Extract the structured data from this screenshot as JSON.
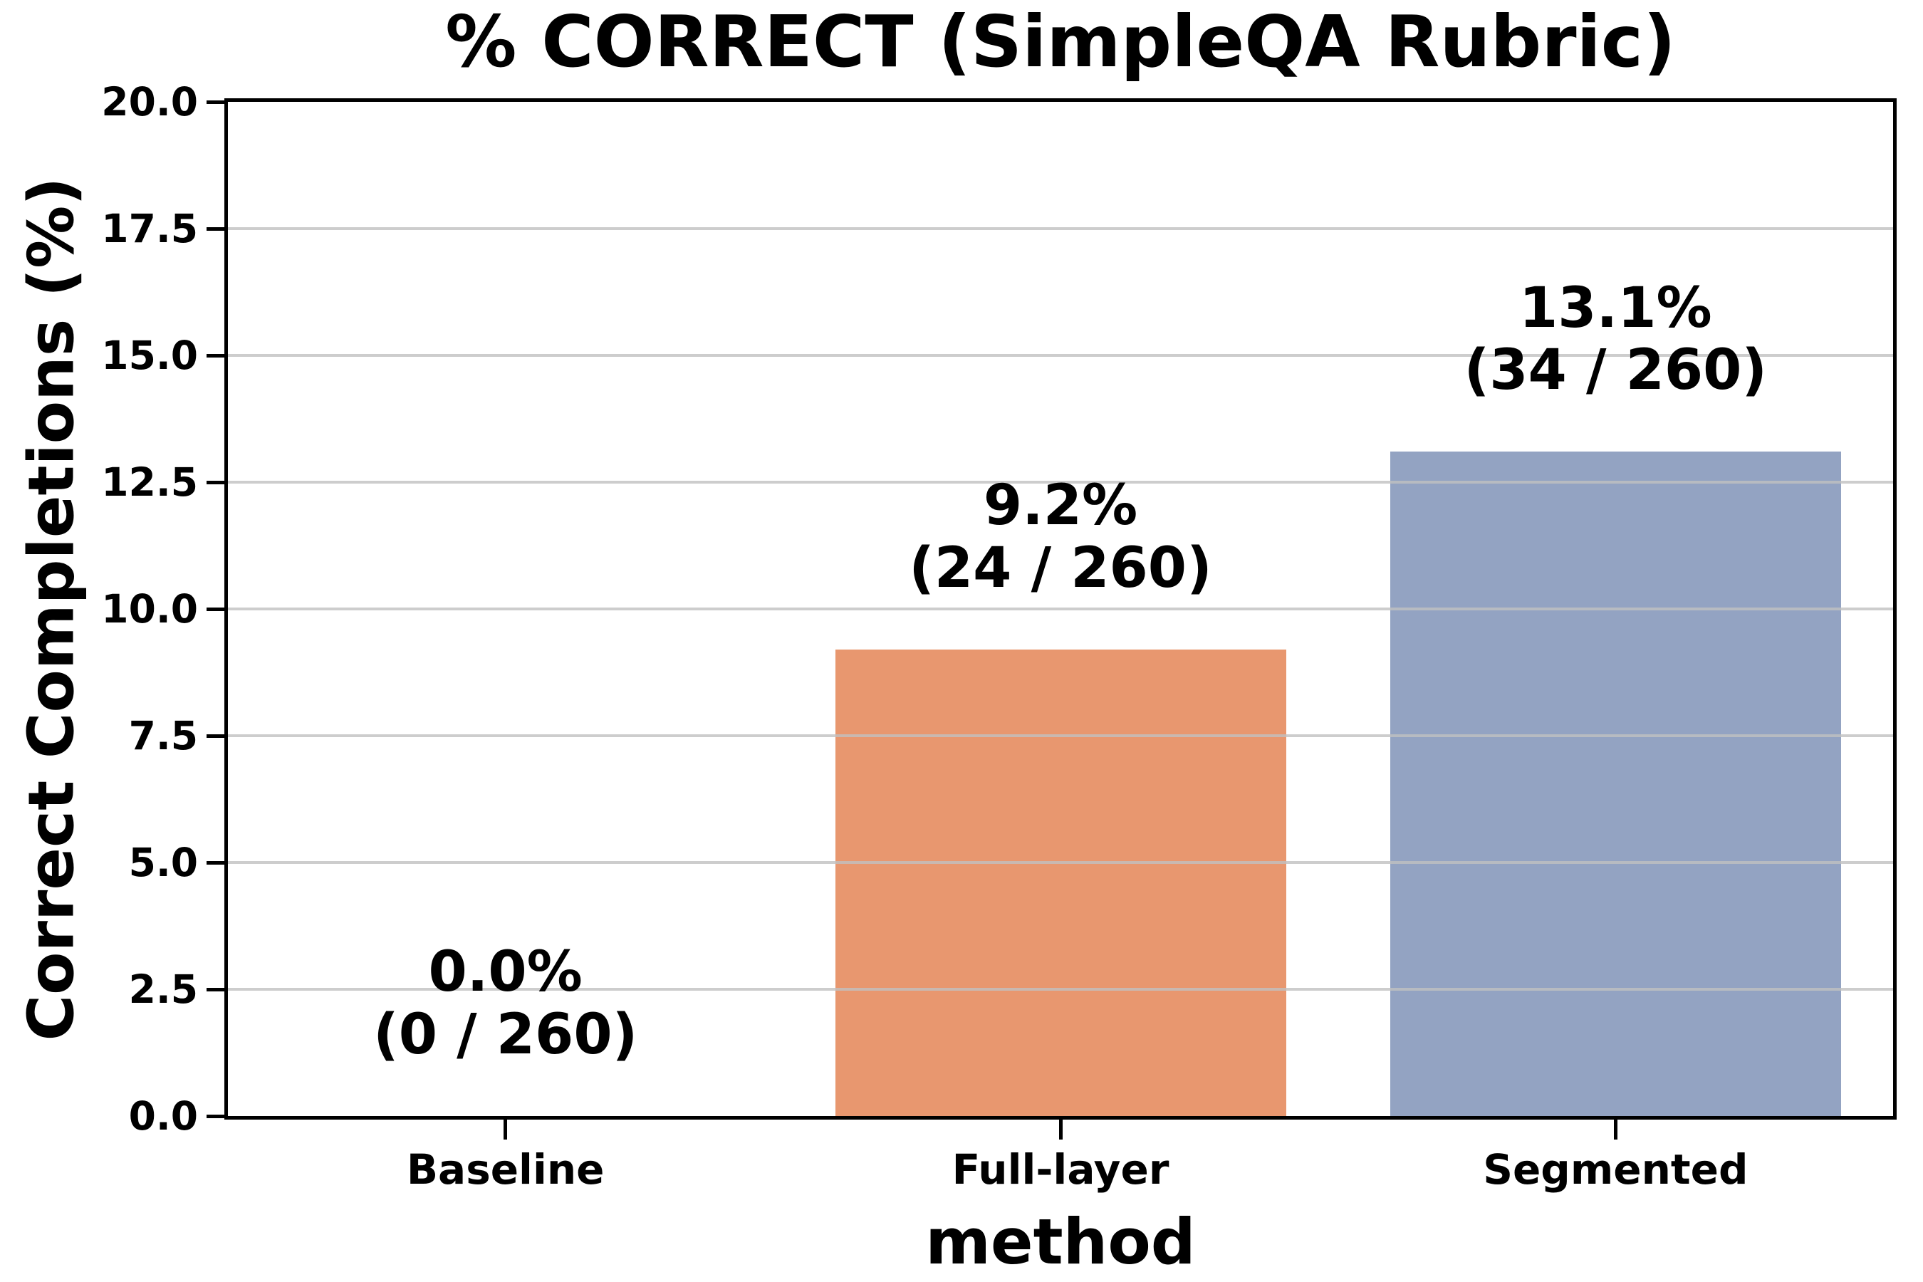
{
  "chart_data": {
    "type": "bar",
    "title": "% CORRECT (SimpleQA Rubric)",
    "xlabel": "method",
    "ylabel": "Correct Completions (%)",
    "categories": [
      "Baseline",
      "Full-layer",
      "Segmented"
    ],
    "values": [
      0.0,
      9.2,
      13.1
    ],
    "correct_counts": [
      0,
      24,
      34
    ],
    "totals": [
      260,
      260,
      260
    ],
    "bar_labels": [
      {
        "line1": "0.0%",
        "line2": "(0 / 260)"
      },
      {
        "line1": "9.2%",
        "line2": "(24 / 260)"
      },
      {
        "line1": "13.1%",
        "line2": "(34 / 260)"
      }
    ],
    "bar_colors": [
      null,
      "#E8976F",
      "#93A3C2"
    ],
    "ylim": [
      0,
      20
    ],
    "yticks": [
      0,
      2.5,
      5,
      7.5,
      10,
      12.5,
      15,
      17.5,
      20
    ],
    "ytick_labels": [
      "0.0",
      "2.5",
      "5.0",
      "7.5",
      "10.0",
      "12.5",
      "15.0",
      "17.5",
      "20.0"
    ],
    "grid": "horizontal",
    "legend": "none",
    "colors": {
      "axis": "#000000",
      "grid": "#C0C0C0",
      "text": "#000000",
      "background": "#FFFFFF"
    }
  }
}
